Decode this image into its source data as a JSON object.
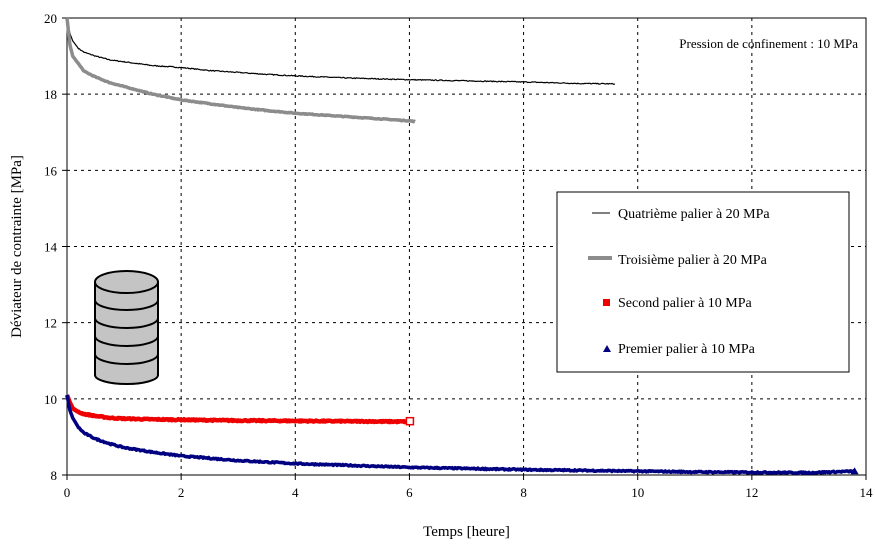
{
  "chart_data": {
    "type": "line",
    "title": "",
    "xlabel": "Temps [heure]",
    "ylabel": "Déviateur de contrainte [MPa]",
    "xlim": [
      0,
      14
    ],
    "ylim": [
      8,
      20
    ],
    "xticks": [
      "0",
      "2",
      "4",
      "6",
      "8",
      "10",
      "12",
      "14"
    ],
    "yticks": [
      "8",
      "10",
      "12",
      "14",
      "16",
      "18",
      "20"
    ],
    "grid": true,
    "legend_position": "right",
    "annotation": "Pression de confinement : 10 MPa",
    "series": [
      {
        "name": "Quatrième palier à 20 MPa",
        "color": "#000000",
        "x": [
          0,
          0.05,
          0.1,
          0.2,
          0.3,
          0.5,
          0.75,
          1,
          1.5,
          2,
          2.5,
          3,
          3.5,
          4,
          4.5,
          5,
          6,
          7,
          8,
          9,
          9.6
        ],
        "y": [
          20,
          19.6,
          19.4,
          19.2,
          19.1,
          19.0,
          18.9,
          18.85,
          18.75,
          18.7,
          18.62,
          18.57,
          18.52,
          18.48,
          18.45,
          18.42,
          18.38,
          18.35,
          18.32,
          18.28,
          18.27
        ]
      },
      {
        "name": "Troisième palier à 20 MPa",
        "color": "#8c8c8c",
        "x": [
          0,
          0.05,
          0.1,
          0.2,
          0.3,
          0.5,
          0.75,
          1,
          1.5,
          2,
          2.5,
          3,
          3.5,
          4,
          4.5,
          5,
          5.5,
          6,
          6.1
        ],
        "y": [
          20,
          19.3,
          19.0,
          18.8,
          18.6,
          18.45,
          18.3,
          18.2,
          18.0,
          17.85,
          17.75,
          17.65,
          17.57,
          17.5,
          17.45,
          17.4,
          17.35,
          17.3,
          17.28
        ]
      },
      {
        "name": "Second palier à 10 MPa",
        "color": "#ee0000",
        "x": [
          0,
          0.05,
          0.1,
          0.2,
          0.3,
          0.5,
          0.75,
          1,
          1.5,
          2,
          3,
          4,
          5,
          6
        ],
        "y": [
          10.1,
          9.9,
          9.75,
          9.65,
          9.6,
          9.55,
          9.5,
          9.48,
          9.46,
          9.45,
          9.43,
          9.42,
          9.41,
          9.4
        ]
      },
      {
        "name": "Premier palier à 10 MPa",
        "color": "#000080",
        "x": [
          0,
          0.05,
          0.1,
          0.2,
          0.3,
          0.5,
          0.75,
          1,
          1.5,
          2,
          2.5,
          3,
          4,
          5,
          6,
          7,
          8,
          9,
          10,
          11,
          12,
          13,
          13.8
        ],
        "y": [
          10.1,
          9.7,
          9.5,
          9.25,
          9.1,
          8.95,
          8.82,
          8.72,
          8.6,
          8.5,
          8.44,
          8.38,
          8.3,
          8.25,
          8.2,
          8.17,
          8.14,
          8.12,
          8.1,
          8.08,
          8.07,
          8.06,
          8.1
        ]
      }
    ]
  }
}
